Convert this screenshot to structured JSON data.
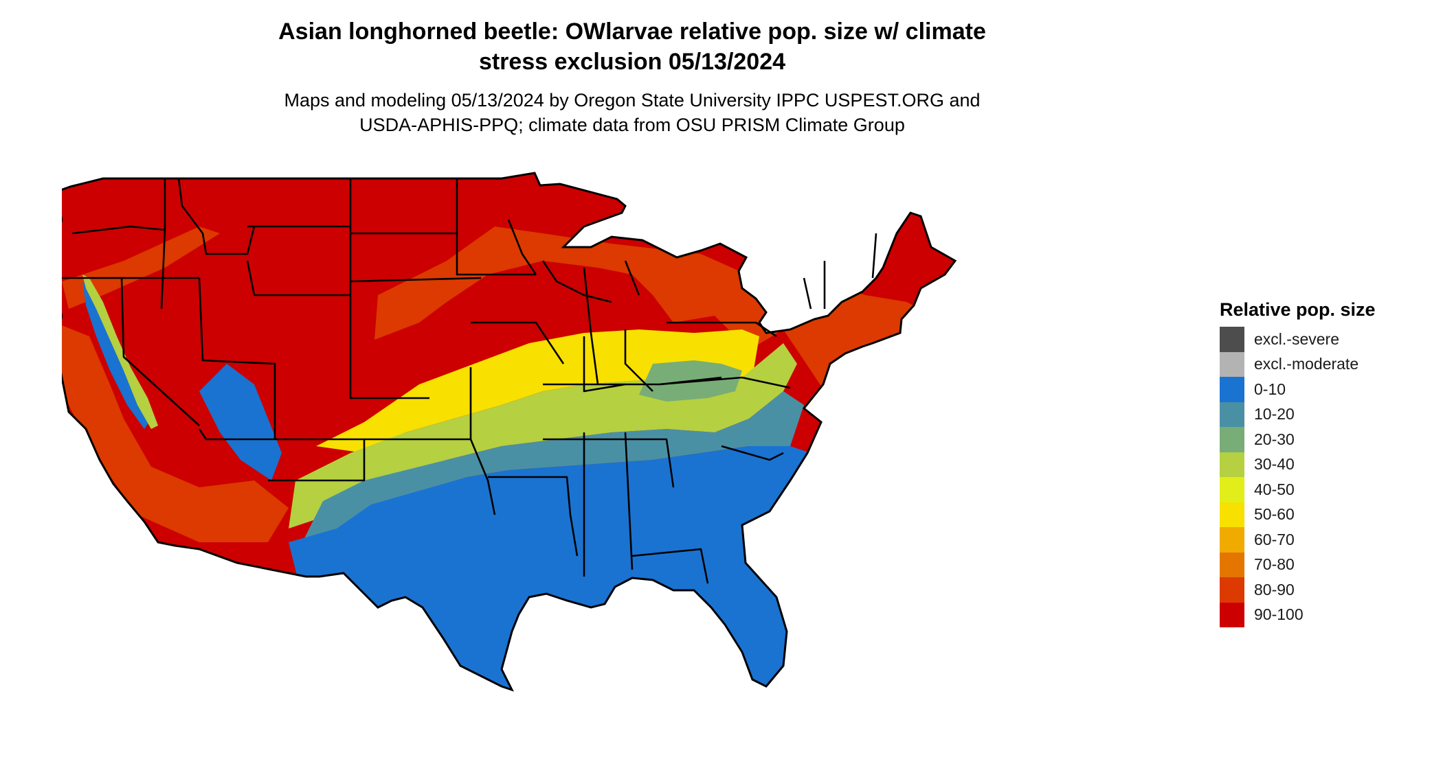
{
  "header": {
    "title_line1": "Asian longhorned beetle: OWlarvae relative pop. size w/ climate",
    "title_line2": "stress exclusion 05/13/2024",
    "subtitle_line1": "Maps and modeling 05/13/2024 by Oregon State University IPPC USPEST.ORG and",
    "subtitle_line2": "USDA-APHIS-PPQ; climate data from OSU PRISM Climate Group"
  },
  "legend": {
    "title": "Relative pop. size",
    "items": [
      {
        "label": "excl.-severe",
        "color": "#4d4d4d"
      },
      {
        "label": "excl.-moderate",
        "color": "#b3b3b3"
      },
      {
        "label": "0-10",
        "color": "#1a73d1"
      },
      {
        "label": "10-20",
        "color": "#4a90a4"
      },
      {
        "label": "20-30",
        "color": "#78ad78"
      },
      {
        "label": "30-40",
        "color": "#b5d040"
      },
      {
        "label": "40-50",
        "color": "#e2ee1a"
      },
      {
        "label": "50-60",
        "color": "#f8e000"
      },
      {
        "label": "60-70",
        "color": "#f0aa00"
      },
      {
        "label": "70-80",
        "color": "#e47600"
      },
      {
        "label": "80-90",
        "color": "#dc3a00"
      },
      {
        "label": "90-100",
        "color": "#cc0000"
      }
    ]
  },
  "map": {
    "region": "contiguous-united-states",
    "band_colors": {
      "r100": "#cc0000",
      "r90": "#dc3a00",
      "r60": "#f8e000",
      "r50": "#e2ee1a",
      "r40": "#b5d040",
      "r30": "#78ad78",
      "r20": "#4a90a4",
      "r10": "#1a73d1",
      "border": "#000000"
    }
  }
}
